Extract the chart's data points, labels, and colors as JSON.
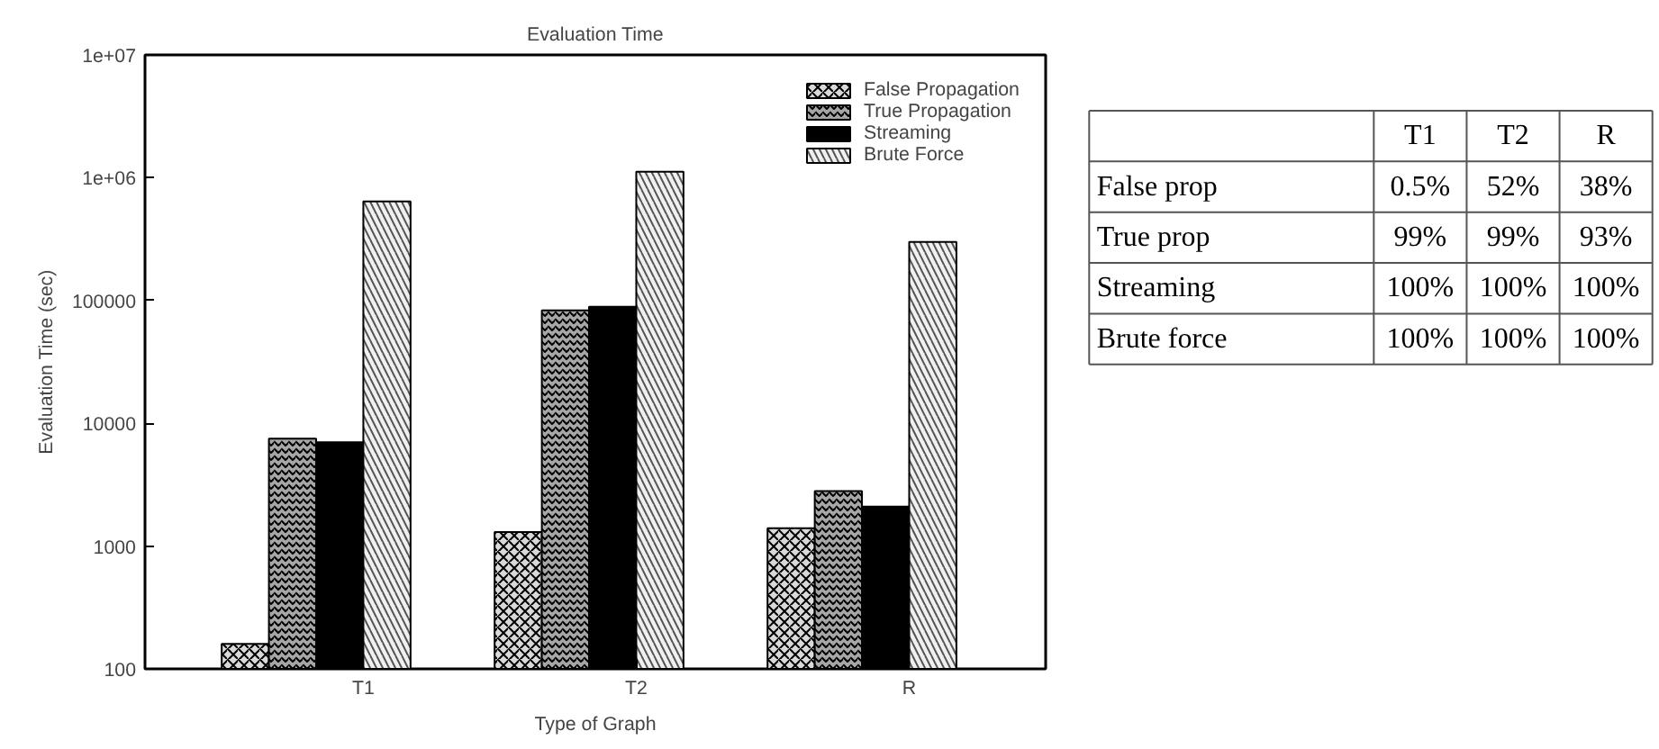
{
  "chart_data": [
    {
      "type": "bar",
      "title": "Evaluation Time",
      "xlabel": "Type of Graph",
      "ylabel": "Evaluation Time (sec)",
      "categories": [
        "T1",
        "T2",
        "R"
      ],
      "series": [
        {
          "name": "False Propagation",
          "color": "#d9d9d9",
          "values": [
            160,
            1300,
            1400
          ]
        },
        {
          "name": "True Propagation",
          "color": "#a6a6a6",
          "values": [
            7500,
            83000,
            2800
          ]
        },
        {
          "name": "Streaming",
          "color": "#000000",
          "values": [
            7000,
            89000,
            2100
          ]
        },
        {
          "name": "Brute Force",
          "color": "#f0f0f0",
          "values": [
            640000,
            1120000,
            300000
          ]
        }
      ],
      "log": "y",
      "ylim": [
        100,
        10000000
      ],
      "yticks": [
        100,
        1000,
        10000,
        100000,
        {
          "value": 1000000,
          "label": "1e+06"
        },
        {
          "value": 10000000,
          "label": "1e+07"
        }
      ],
      "legend": "top right",
      "grid": false
    },
    {
      "type": "other",
      "categories": [
        "T1",
        "T2",
        "R"
      ],
      "y_categories": [
        "False prop",
        "True prop",
        "Streaming",
        "Brute force"
      ],
      "cell_labels": [
        [
          "0.5%",
          "52%",
          "38%"
        ],
        [
          "99%",
          "99%",
          "93%"
        ],
        [
          "100%",
          "100%",
          "100%"
        ],
        [
          "100%",
          "100%",
          "100%"
        ]
      ]
    }
  ]
}
